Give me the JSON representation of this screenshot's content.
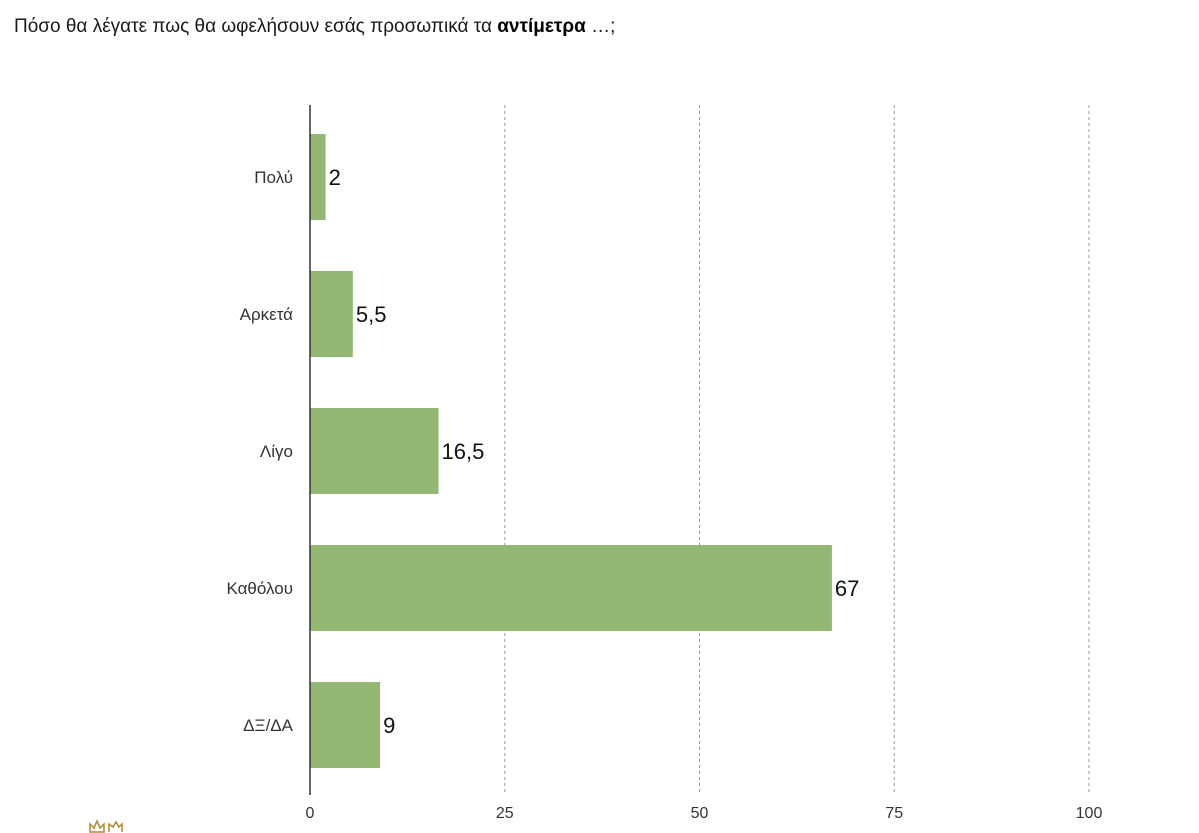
{
  "title": {
    "text": "Πόσο θα λέγατε πως θα ωφελήσουν εσάς προσωπικά τα",
    "emphasis": "αντίμετρα",
    "suffix": "…;"
  },
  "colors": {
    "bar": "#93b874",
    "axis": "#333333",
    "grid": "#9a9a9a"
  },
  "logo_icon": "crown-logo-icon",
  "chart_data": {
    "type": "bar",
    "orientation": "horizontal",
    "categories": [
      "Πολύ",
      "Αρκετά",
      "Λίγο",
      "Καθόλου",
      "ΔΞ/ΔΑ"
    ],
    "values": [
      2,
      5.5,
      16.5,
      67,
      9
    ],
    "value_labels": [
      "2",
      "5,5",
      "16,5",
      "67",
      "9"
    ],
    "xlim": [
      0,
      100
    ],
    "xticks": [
      0,
      25,
      50,
      75,
      100
    ],
    "grid": "vertical dashed",
    "legend": "none"
  }
}
